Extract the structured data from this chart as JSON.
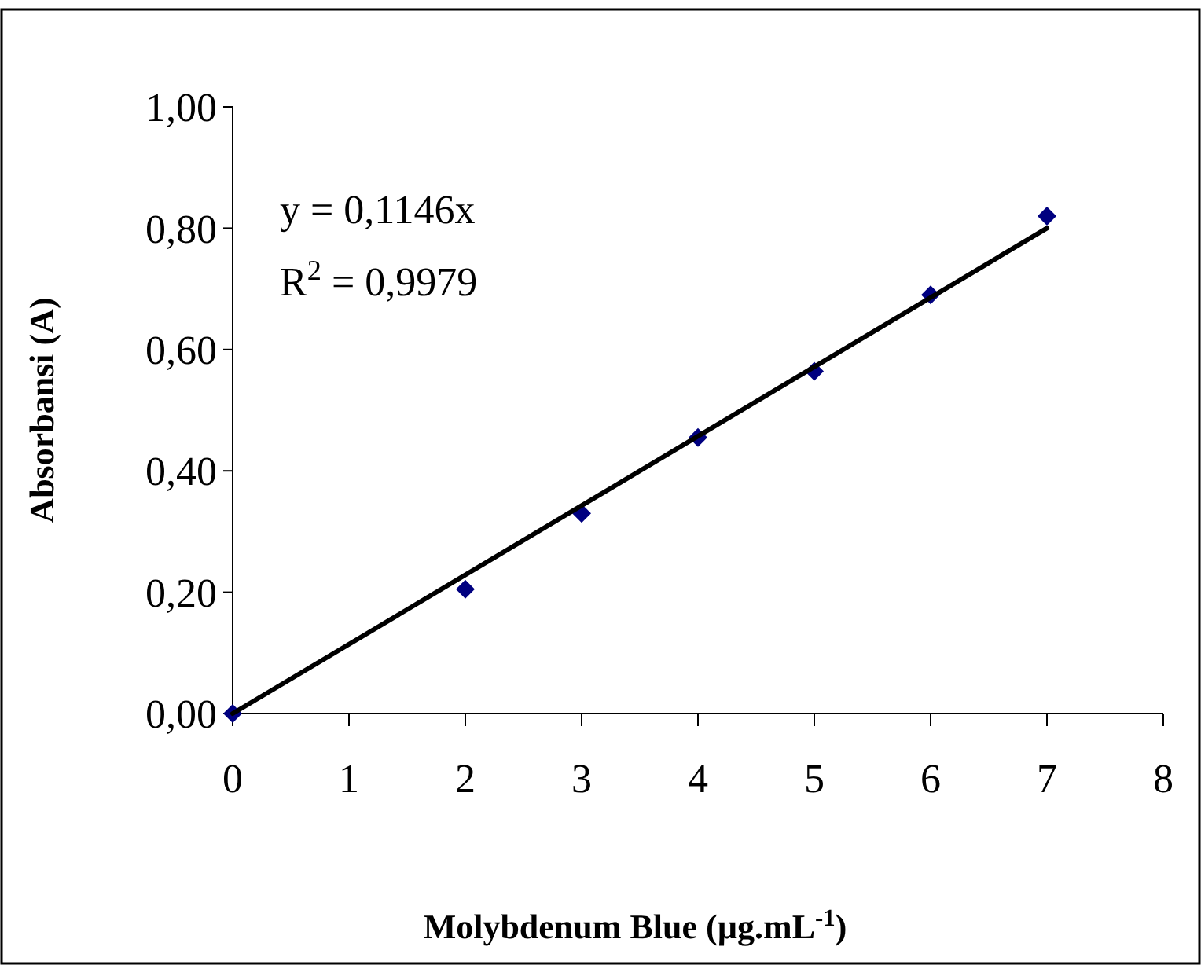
{
  "chart_data": {
    "type": "scatter",
    "xlabel": "Molybdenum Blue  (µg.mL$^{-1}$)",
    "ylabel": "Absorbansi (A)",
    "series": [
      {
        "color": "#000080",
        "marker": "diamond",
        "x": [
          0,
          2,
          3,
          4,
          5,
          6,
          7
        ],
        "values": [
          0,
          0.205,
          0.33,
          0.455,
          0.564,
          0.69,
          0.82
        ]
      },
      {
        "type": "line",
        "color": "#000000",
        "marker": "none",
        "line_style": "solid",
        "x": [
          0,
          7
        ],
        "values": [
          0,
          0.8
        ]
      }
    ],
    "xlim": [
      0,
      8
    ],
    "xticks": [
      0,
      1,
      2,
      3,
      4,
      5,
      6,
      7,
      8
    ],
    "ylim": [
      0,
      1
    ],
    "yticks": [
      {
        "value": 0,
        "label": "0,00"
      },
      {
        "value": 0.2,
        "label": "0,20"
      },
      {
        "value": 0.4,
        "label": "0,40"
      },
      {
        "value": 0.6,
        "label": "0,60"
      },
      {
        "value": 0.8,
        "label": "0,80"
      },
      {
        "value": 1,
        "label": "1,00"
      }
    ],
    "annotations": [
      "y = 0,1146x",
      "R$^{2}$ = 0,9979"
    ],
    "grid": false
  }
}
